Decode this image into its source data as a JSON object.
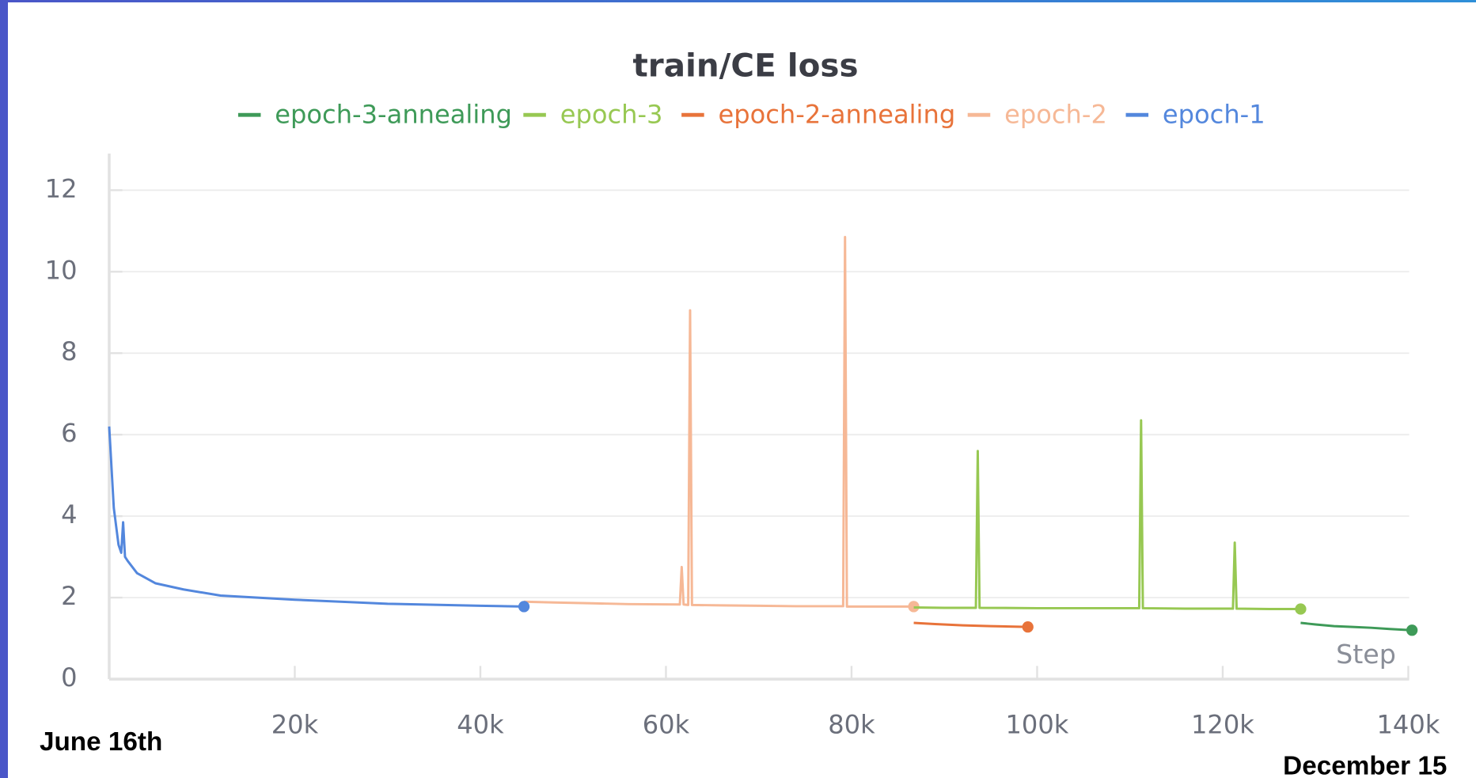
{
  "chart_data": {
    "type": "line",
    "title": "train/CE loss",
    "x_label": "Step",
    "annotations": [
      "June 16th",
      "December 15"
    ],
    "xlim": [
      0,
      140500
    ],
    "ylim": [
      0,
      12.9
    ],
    "xticks": [
      {
        "value": 20000,
        "label": "20k"
      },
      {
        "value": 40000,
        "label": "40k"
      },
      {
        "value": 60000,
        "label": "60k"
      },
      {
        "value": 80000,
        "label": "80k"
      },
      {
        "value": 100000,
        "label": "100k"
      },
      {
        "value": 120000,
        "label": "120k"
      },
      {
        "value": 140000,
        "label": "140k"
      }
    ],
    "yticks": [
      0,
      2,
      4,
      6,
      8,
      10,
      12
    ],
    "grid": true,
    "series": [
      {
        "name": "epoch-3-annealing",
        "color": "#3e9a58",
        "x": [
          128400,
          130000,
          132000,
          134000,
          136000,
          138000,
          140400
        ],
        "values": [
          1.38,
          1.34,
          1.3,
          1.28,
          1.26,
          1.23,
          1.2
        ]
      },
      {
        "name": "epoch-3",
        "color": "#97c852",
        "x": [
          86700,
          90000,
          93400,
          93600,
          93800,
          100000,
          105000,
          111000,
          111200,
          111400,
          116000,
          121100,
          121300,
          121500,
          125000,
          128400
        ],
        "values": [
          1.76,
          1.75,
          1.75,
          5.6,
          1.75,
          1.74,
          1.74,
          1.74,
          6.35,
          1.74,
          1.73,
          1.73,
          3.35,
          1.73,
          1.72,
          1.72
        ]
      },
      {
        "name": "epoch-2-annealing",
        "color": "#e8733a",
        "x": [
          86700,
          89000,
          92000,
          95000,
          97000,
          99000
        ],
        "values": [
          1.38,
          1.35,
          1.32,
          1.3,
          1.29,
          1.28
        ]
      },
      {
        "name": "epoch-2",
        "color": "#f6b896",
        "x": [
          44700,
          48000,
          52000,
          56000,
          61500,
          61700,
          61900,
          62400,
          62600,
          62800,
          66000,
          70000,
          74000,
          79100,
          79300,
          79500,
          83000,
          86700
        ],
        "values": [
          1.9,
          1.88,
          1.86,
          1.84,
          1.83,
          2.75,
          1.83,
          1.82,
          9.05,
          1.82,
          1.81,
          1.8,
          1.79,
          1.79,
          10.85,
          1.78,
          1.78,
          1.78
        ]
      },
      {
        "name": "epoch-1",
        "color": "#5387dd",
        "x": [
          0,
          500,
          1000,
          1300,
          1500,
          1700,
          2000,
          3000,
          5000,
          8000,
          12000,
          20000,
          30000,
          40000,
          44700
        ],
        "values": [
          6.2,
          4.2,
          3.3,
          3.1,
          3.85,
          3.0,
          2.9,
          2.6,
          2.35,
          2.2,
          2.05,
          1.95,
          1.85,
          1.8,
          1.78
        ]
      }
    ]
  }
}
